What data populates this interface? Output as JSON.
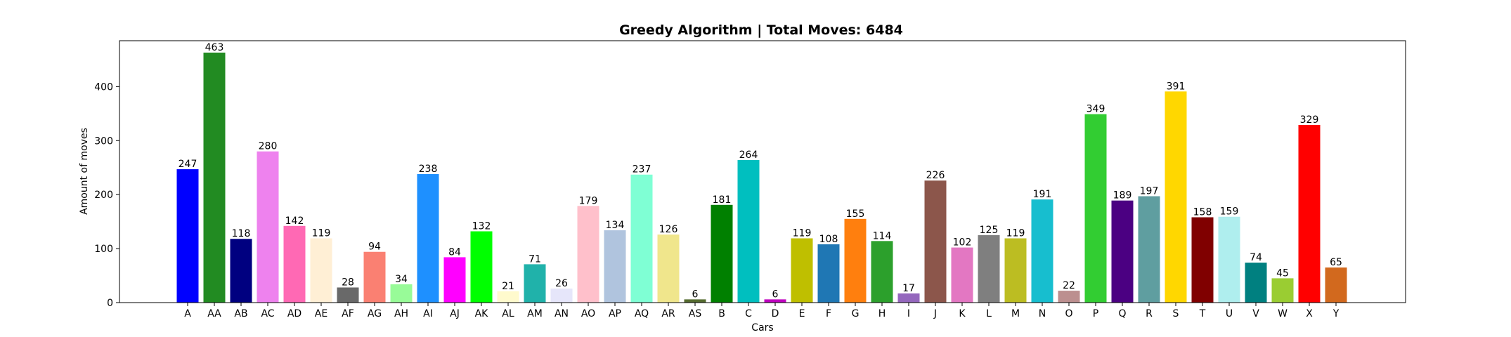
{
  "chart_data": {
    "type": "bar",
    "title": "Greedy Algorithm | Total Moves: 6484",
    "xlabel": "Cars",
    "ylabel": "Amount of moves",
    "ylim": [
      0,
      485
    ],
    "yticks": [
      0,
      100,
      200,
      300,
      400
    ],
    "grid": false,
    "categories": [
      "A",
      "AA",
      "AB",
      "AC",
      "AD",
      "AE",
      "AF",
      "AG",
      "AH",
      "AI",
      "AJ",
      "AK",
      "AL",
      "AM",
      "AN",
      "AO",
      "AP",
      "AQ",
      "AR",
      "AS",
      "B",
      "C",
      "D",
      "E",
      "F",
      "G",
      "H",
      "I",
      "J",
      "K",
      "L",
      "M",
      "N",
      "O",
      "P",
      "Q",
      "R",
      "S",
      "T",
      "U",
      "V",
      "W",
      "X",
      "Y"
    ],
    "values": [
      247,
      463,
      118,
      280,
      142,
      119,
      28,
      94,
      34,
      238,
      84,
      132,
      21,
      71,
      26,
      179,
      134,
      237,
      126,
      6,
      181,
      264,
      6,
      119,
      108,
      155,
      114,
      17,
      226,
      102,
      125,
      119,
      191,
      22,
      349,
      189,
      197,
      391,
      158,
      159,
      74,
      45,
      329,
      65
    ],
    "colors": [
      "#0000ff",
      "#228b22",
      "#000080",
      "#ee82ee",
      "#ff69b4",
      "#ffefd5",
      "#696969",
      "#fa8072",
      "#98fb98",
      "#1e90ff",
      "#ff00ff",
      "#00ff00",
      "#fffacd",
      "#20b2aa",
      "#e6e6fa",
      "#ffc0cb",
      "#b0c4de",
      "#7fffd4",
      "#f0e68c",
      "#556b2f",
      "#008000",
      "#00bfbf",
      "#bf00bf",
      "#bfbf00",
      "#1f77b4",
      "#ff7f0e",
      "#2ca02c",
      "#9467bd",
      "#8c564b",
      "#e377c2",
      "#7f7f7f",
      "#bcbd22",
      "#17becf",
      "#bc8f8f",
      "#32cd32",
      "#4b0082",
      "#5f9ea0",
      "#ffd700",
      "#800000",
      "#afeeee",
      "#008080",
      "#9acd32",
      "#ff0000",
      "#d2691e"
    ]
  }
}
